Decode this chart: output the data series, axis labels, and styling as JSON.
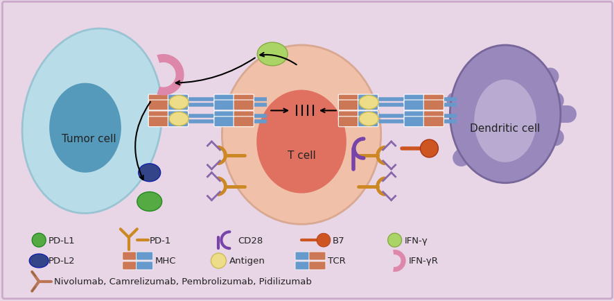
{
  "bg_color": "#e8d5e5",
  "tumor_cell_color": "#b8dde8",
  "tumor_cell_edge": "#99c4d4",
  "tumor_nucleus_color": "#5599bb",
  "t_cell_color": "#f0c0a8",
  "t_cell_edge": "#d8a890",
  "t_nucleus_color": "#e07060",
  "dc_color": "#9988bb",
  "dc_edge": "#776699",
  "dc_nucleus_color": "#b8aad0",
  "pdl1_color": "#55aa44",
  "pdl2_color": "#334488",
  "pd1_color": "#cc8822",
  "cd28_color": "#7744aa",
  "b7_color": "#cc5522",
  "ifng_color": "#aad466",
  "mhc_brown": "#cc7755",
  "mhc_blue": "#6699cc",
  "antigen_color": "#eedd88",
  "antigen_edge": "#ccbb55",
  "tcr_brown": "#cc7755",
  "tcr_blue": "#6699cc",
  "ifngr_color": "#dd88aa",
  "antibody_color": "#bb7755",
  "label_tumor": "Tumor cell",
  "label_t": "T cell",
  "label_dendritic": "Dendritic cell",
  "legend_row3": "Nivolumab, Camrelizumab, Pembrolizumab, Pidilizumab",
  "font_size": 10
}
